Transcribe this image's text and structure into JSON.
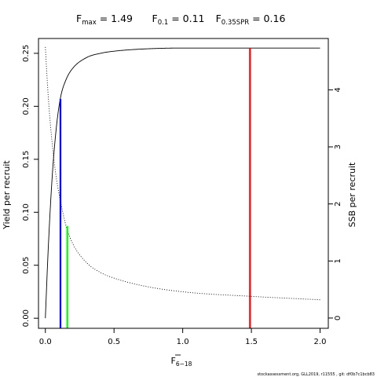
{
  "title": {
    "fmax": {
      "symbol": "F",
      "sub": "max",
      "rest": " = 1.49"
    },
    "f01": {
      "symbol": "F",
      "sub": "0.1",
      "rest": " = 0.11"
    },
    "fspr": {
      "symbol": "F",
      "sub": "0.35SPR",
      "rest": " = 0.16"
    }
  },
  "footer": "stockassessment.org, GLL2019, r11555 , git: df0b7c1bcb83",
  "chart_data": {
    "type": "line",
    "xlabel": {
      "base": "F",
      "sub": "6−18"
    },
    "ylabel_left": "Yield per recruit",
    "ylabel_right": "SSB per recruit",
    "xlim": [
      -0.05,
      2.06
    ],
    "ylim_left": [
      -0.0095,
      0.264
    ],
    "ylim_right": [
      -0.18,
      4.9
    ],
    "x_ticks": [
      0,
      0.5,
      1,
      1.5,
      2
    ],
    "x_tick_labels": [
      "0.0",
      "0.5",
      "1.0",
      "1.5",
      "2.0"
    ],
    "y_left_ticks": [
      0,
      0.05,
      0.1,
      0.15,
      0.2,
      0.25
    ],
    "y_left_tick_labels": [
      "0.00",
      "0.05",
      "0.10",
      "0.15",
      "0.20",
      "0.25"
    ],
    "y_right_ticks": [
      0,
      1,
      2,
      3,
      4
    ],
    "y_right_tick_labels": [
      "0",
      "1",
      "2",
      "3",
      "4"
    ],
    "series": [
      {
        "axis": "left",
        "style": "solid",
        "x": [
          0,
          0.02,
          0.05,
          0.08,
          0.11,
          0.15,
          0.2,
          0.3,
          0.4,
          0.5,
          0.7,
          1.0,
          1.5,
          2.0
        ],
        "values": [
          0.0,
          0.063,
          0.134,
          0.18,
          0.208,
          0.225,
          0.236,
          0.246,
          0.25,
          0.252,
          0.254,
          0.255,
          0.255,
          0.255
        ]
      },
      {
        "axis": "right",
        "style": "dotted",
        "x": [
          0,
          0.02,
          0.05,
          0.08,
          0.11,
          0.15,
          0.2,
          0.3,
          0.4,
          0.5,
          0.7,
          1.0,
          1.5,
          2.0
        ],
        "values": [
          4.75,
          3.92,
          3.05,
          2.45,
          2.05,
          1.62,
          1.3,
          0.97,
          0.8,
          0.7,
          0.57,
          0.46,
          0.38,
          0.32
        ]
      }
    ],
    "reference_lines": [
      {
        "x": 0.11,
        "y": 0.207,
        "color": "#0000ff"
      },
      {
        "x": 0.16,
        "y": 0.087,
        "color": "#00ff00"
      },
      {
        "x": 1.49,
        "y": 0.255,
        "color": "#ff0000"
      }
    ]
  }
}
